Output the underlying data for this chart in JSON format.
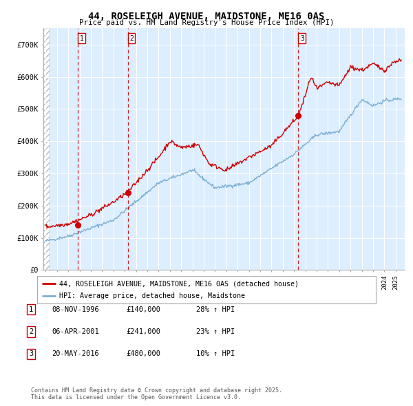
{
  "title": "44, ROSELEIGH AVENUE, MAIDSTONE, ME16 0AS",
  "subtitle": "Price paid vs. HM Land Registry's House Price Index (HPI)",
  "ylim": [
    0,
    750000
  ],
  "yticks": [
    0,
    100000,
    200000,
    300000,
    400000,
    500000,
    600000,
    700000
  ],
  "ytick_labels": [
    "£0",
    "£100K",
    "£200K",
    "£300K",
    "£400K",
    "£500K",
    "£600K",
    "£700K"
  ],
  "red_line_color": "#cc0000",
  "blue_line_color": "#7bafd4",
  "plot_bg_color": "#ddeeff",
  "grid_color": "#ffffff",
  "vline_color": "#cc0000",
  "purchase_dates": [
    1996.85,
    2001.27,
    2016.38
  ],
  "purchase_prices": [
    140000,
    241000,
    480000
  ],
  "purchase_labels": [
    "1",
    "2",
    "3"
  ],
  "legend_red": "44, ROSELEIGH AVENUE, MAIDSTONE, ME16 0AS (detached house)",
  "legend_blue": "HPI: Average price, detached house, Maidstone",
  "table_entries": [
    {
      "num": "1",
      "date": "08-NOV-1996",
      "price": "£140,000",
      "hpi": "28% ↑ HPI"
    },
    {
      "num": "2",
      "date": "06-APR-2001",
      "price": "£241,000",
      "hpi": "23% ↑ HPI"
    },
    {
      "num": "3",
      "date": "20-MAY-2016",
      "price": "£480,000",
      "hpi": "10% ↑ HPI"
    }
  ],
  "footnote": "Contains HM Land Registry data © Crown copyright and database right 2025.\nThis data is licensed under the Open Government Licence v3.0.",
  "background_color": "#ffffff"
}
